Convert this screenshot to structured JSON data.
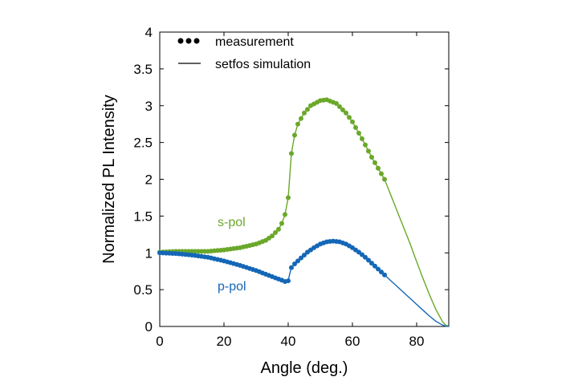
{
  "chart_data": {
    "type": "line",
    "title": "",
    "xlabel": "Angle (deg.)",
    "ylabel": "Normalized PL Intensity",
    "xlim": [
      0,
      90
    ],
    "ylim": [
      0,
      4
    ],
    "xticks": [
      0,
      20,
      40,
      60,
      80
    ],
    "yticks": [
      0,
      0.5,
      1,
      1.5,
      2,
      2.5,
      3,
      3.5,
      4
    ],
    "grid": false,
    "legend": {
      "placement": "top-left",
      "entries": [
        {
          "label": "measurement",
          "marker": "dots"
        },
        {
          "label": "setfos simulation",
          "marker": "line"
        }
      ]
    },
    "colors": {
      "s_pol": "#6aa82a",
      "p_pol": "#1467b7"
    },
    "series": [
      {
        "name": "s-pol",
        "color": "#6aa82a",
        "simulation": [
          [
            0,
            1.01
          ],
          [
            5,
            1.02
          ],
          [
            10,
            1.02
          ],
          [
            15,
            1.02
          ],
          [
            20,
            1.04
          ],
          [
            25,
            1.07
          ],
          [
            30,
            1.12
          ],
          [
            33,
            1.17
          ],
          [
            35,
            1.23
          ],
          [
            37,
            1.32
          ],
          [
            38,
            1.4
          ],
          [
            39,
            1.52
          ],
          [
            40,
            1.75
          ],
          [
            40.5,
            2.05
          ],
          [
            41,
            2.35
          ],
          [
            42,
            2.6
          ],
          [
            43,
            2.75
          ],
          [
            45,
            2.9
          ],
          [
            47,
            3.0
          ],
          [
            50,
            3.07
          ],
          [
            52,
            3.08
          ],
          [
            55,
            3.03
          ],
          [
            58,
            2.9
          ],
          [
            60,
            2.78
          ],
          [
            63,
            2.55
          ],
          [
            66,
            2.3
          ],
          [
            68,
            2.15
          ],
          [
            70,
            2.0
          ],
          [
            72,
            1.78
          ],
          [
            75,
            1.45
          ],
          [
            78,
            1.12
          ],
          [
            80,
            0.88
          ],
          [
            82,
            0.65
          ],
          [
            84,
            0.43
          ],
          [
            86,
            0.23
          ],
          [
            88,
            0.07
          ],
          [
            89,
            0.02
          ],
          [
            90,
            0
          ]
        ],
        "measurement_range": [
          0,
          70
        ]
      },
      {
        "name": "p-pol",
        "color": "#1467b7",
        "simulation": [
          [
            0,
            1.0
          ],
          [
            5,
            0.99
          ],
          [
            10,
            0.97
          ],
          [
            15,
            0.94
          ],
          [
            20,
            0.89
          ],
          [
            25,
            0.83
          ],
          [
            30,
            0.76
          ],
          [
            33,
            0.71
          ],
          [
            36,
            0.66
          ],
          [
            38,
            0.63
          ],
          [
            39,
            0.61
          ],
          [
            40,
            0.62
          ],
          [
            40.5,
            0.72
          ],
          [
            41,
            0.8
          ],
          [
            42,
            0.85
          ],
          [
            44,
            0.93
          ],
          [
            46,
            1.01
          ],
          [
            48,
            1.07
          ],
          [
            50,
            1.12
          ],
          [
            52,
            1.15
          ],
          [
            54,
            1.16
          ],
          [
            56,
            1.15
          ],
          [
            58,
            1.12
          ],
          [
            60,
            1.07
          ],
          [
            62,
            1.01
          ],
          [
            64,
            0.94
          ],
          [
            66,
            0.86
          ],
          [
            68,
            0.78
          ],
          [
            70,
            0.7
          ],
          [
            72,
            0.62
          ],
          [
            75,
            0.5
          ],
          [
            78,
            0.38
          ],
          [
            80,
            0.3
          ],
          [
            82,
            0.22
          ],
          [
            84,
            0.14
          ],
          [
            86,
            0.07
          ],
          [
            88,
            0.02
          ],
          [
            89,
            0.005
          ],
          [
            90,
            0
          ]
        ],
        "measurement_range": [
          0,
          70
        ]
      }
    ],
    "annotations": [
      {
        "text": "s-pol",
        "series": "s-pol"
      },
      {
        "text": "p-pol",
        "series": "p-pol"
      }
    ]
  }
}
